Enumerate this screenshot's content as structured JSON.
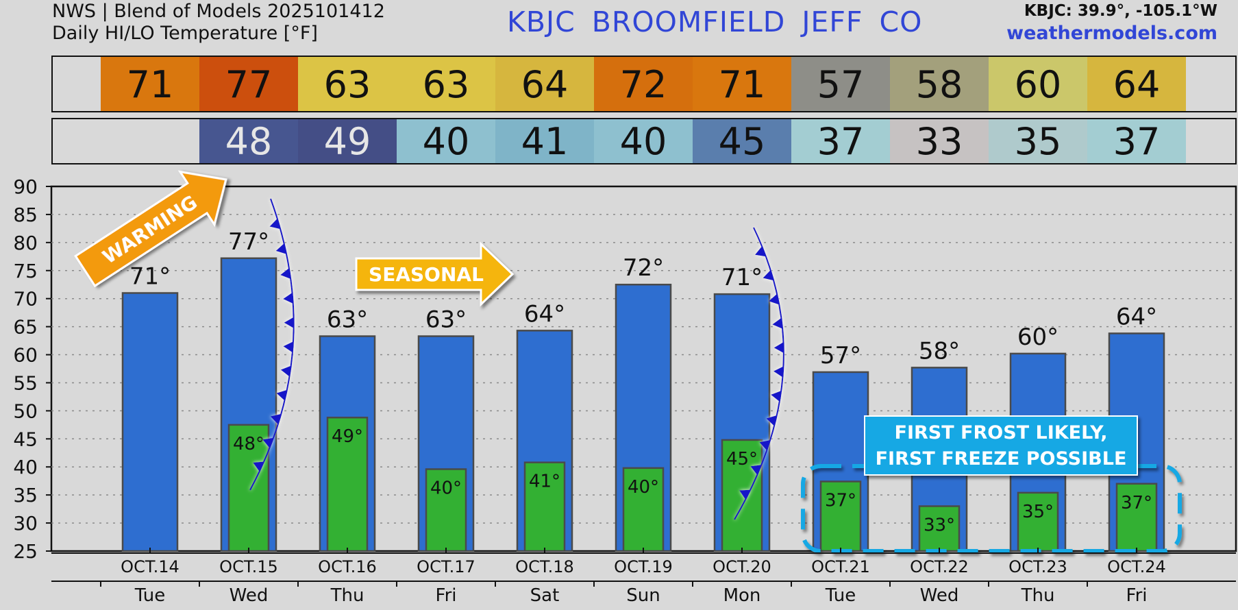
{
  "header": {
    "line1": "NWS | Blend of Models 2025101412",
    "line2": "Daily HI/LO Temperature [°F]",
    "title": "KBJC BROOMFIELD JEFF CO",
    "coords": "KBJC: 39.9°, -105.1°W",
    "site": "weathermodels.com"
  },
  "strips": {
    "hi": [
      {
        "value": "71",
        "color": "#d9770e"
      },
      {
        "value": "77",
        "color": "#cc4f0d"
      },
      {
        "value": "63",
        "color": "#dcc445"
      },
      {
        "value": "63",
        "color": "#dcc445"
      },
      {
        "value": "64",
        "color": "#d6b63e"
      },
      {
        "value": "72",
        "color": "#d56f0d"
      },
      {
        "value": "71",
        "color": "#d9770e"
      },
      {
        "value": "57",
        "color": "#8e8e88"
      },
      {
        "value": "58",
        "color": "#a3a07c"
      },
      {
        "value": "60",
        "color": "#cbc76a"
      },
      {
        "value": "64",
        "color": "#d6b63e"
      }
    ],
    "lo": [
      {
        "value": "",
        "color": "#d9d9d9",
        "text_color": "#111111"
      },
      {
        "value": "48",
        "color": "#475690",
        "text_color": "#e6e6e6"
      },
      {
        "value": "49",
        "color": "#444e86",
        "text_color": "#e6e6e6"
      },
      {
        "value": "40",
        "color": "#8ec0cf",
        "text_color": "#111111"
      },
      {
        "value": "41",
        "color": "#7fb4c8",
        "text_color": "#111111"
      },
      {
        "value": "40",
        "color": "#8ec0cf",
        "text_color": "#111111"
      },
      {
        "value": "45",
        "color": "#5a7ead",
        "text_color": "#111111"
      },
      {
        "value": "37",
        "color": "#a3cdd2",
        "text_color": "#111111"
      },
      {
        "value": "33",
        "color": "#c6c2c2",
        "text_color": "#111111"
      },
      {
        "value": "35",
        "color": "#afcacc",
        "text_color": "#111111"
      },
      {
        "value": "37",
        "color": "#a3cdd2",
        "text_color": "#111111"
      }
    ]
  },
  "chart_data": {
    "type": "bar",
    "categories": [
      "OCT.14",
      "OCT.15",
      "OCT.16",
      "OCT.17",
      "OCT.18",
      "OCT.19",
      "OCT.20",
      "OCT.21",
      "OCT.22",
      "OCT.23",
      "OCT.24"
    ],
    "days": [
      "Tue",
      "Wed",
      "Thu",
      "Fri",
      "Sat",
      "Sun",
      "Mon",
      "Tue",
      "Wed",
      "Thu",
      "Fri"
    ],
    "series": [
      {
        "values": [
          71,
          77.2,
          63.3,
          63.3,
          64.3,
          72.5,
          70.8,
          56.9,
          57.7,
          60.2,
          63.8
        ],
        "color": "#2e6ed0"
      },
      {
        "values": [
          null,
          47.5,
          48.8,
          39.6,
          40.8,
          39.8,
          44.8,
          37.4,
          33,
          35.4,
          37
        ]
      }
    ],
    "hi_labels": [
      "71°",
      "77°",
      "63°",
      "63°",
      "64°",
      "72°",
      "71°",
      "57°",
      "58°",
      "60°",
      "64°"
    ],
    "lo_labels": [
      "",
      "48°",
      "49°",
      "40°",
      "41°",
      "40°",
      "45°",
      "37°",
      "33°",
      "35°",
      "37°"
    ],
    "ylim": [
      25,
      90
    ],
    "yticks": [
      90,
      85,
      80,
      75,
      70,
      65,
      60,
      55,
      50,
      45,
      40,
      35,
      30,
      25
    ],
    "grid": true,
    "colors": {
      "hi_bar": "#2e6ed0",
      "lo_bar": "#33b033",
      "front": "#1414c8",
      "annotation_orange": "#f39a0e",
      "annotation_gold": "#f5b50c",
      "frost_box": "#13a8e4"
    },
    "annotations": {
      "warming": "WARMING",
      "seasonal": "SEASONAL",
      "frost_line1": "FIRST FROST LIKELY,",
      "frost_line2": "FIRST FREEZE POSSIBLE"
    }
  }
}
